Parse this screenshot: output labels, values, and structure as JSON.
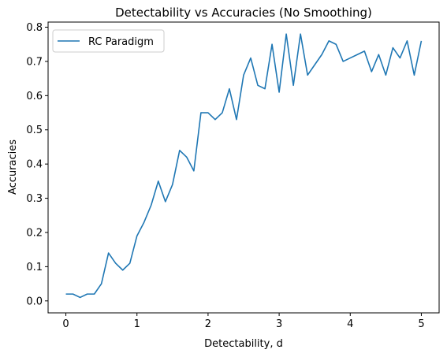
{
  "chart_data": {
    "type": "line",
    "title": "Detectability vs Accuracies (No Smoothing)",
    "xlabel": "Detectability, d",
    "ylabel": "Accuracies",
    "xlim": [
      -0.25,
      5.25
    ],
    "ylim": [
      -0.035,
      0.815
    ],
    "xticks": [
      0,
      1,
      2,
      3,
      4,
      5
    ],
    "xtick_labels": [
      "0",
      "1",
      "2",
      "3",
      "4",
      "5"
    ],
    "yticks": [
      0.0,
      0.1,
      0.2,
      0.3,
      0.4,
      0.5,
      0.6,
      0.7,
      0.8
    ],
    "ytick_labels": [
      "0.0",
      "0.1",
      "0.2",
      "0.3",
      "0.4",
      "0.5",
      "0.6",
      "0.7",
      "0.8"
    ],
    "grid": false,
    "legend": {
      "position": "top-left"
    },
    "series": [
      {
        "name": "RC Paradigm",
        "color": "#1f77b4",
        "x": [
          0.0,
          0.1,
          0.2,
          0.3,
          0.4,
          0.5,
          0.6,
          0.7,
          0.8,
          0.9,
          1.0,
          1.1,
          1.2,
          1.3,
          1.4,
          1.5,
          1.6,
          1.7,
          1.8,
          1.9,
          2.0,
          2.1,
          2.2,
          2.3,
          2.4,
          2.5,
          2.6,
          2.7,
          2.8,
          2.9,
          3.0,
          3.1,
          3.2,
          3.3,
          3.4,
          3.5,
          3.6,
          3.7,
          3.8,
          3.9,
          4.0,
          4.1,
          4.2,
          4.3,
          4.4,
          4.5,
          4.6,
          4.7,
          4.8,
          4.9,
          5.0
        ],
        "y": [
          0.02,
          0.02,
          0.01,
          0.02,
          0.02,
          0.05,
          0.14,
          0.11,
          0.09,
          0.11,
          0.19,
          0.23,
          0.28,
          0.35,
          0.29,
          0.34,
          0.44,
          0.42,
          0.38,
          0.55,
          0.55,
          0.53,
          0.55,
          0.62,
          0.53,
          0.66,
          0.71,
          0.63,
          0.62,
          0.75,
          0.61,
          0.78,
          0.63,
          0.78,
          0.66,
          0.69,
          0.72,
          0.76,
          0.75,
          0.7,
          0.71,
          0.72,
          0.73,
          0.67,
          0.72,
          0.66,
          0.74,
          0.71,
          0.76,
          0.66,
          0.76
        ]
      }
    ]
  }
}
